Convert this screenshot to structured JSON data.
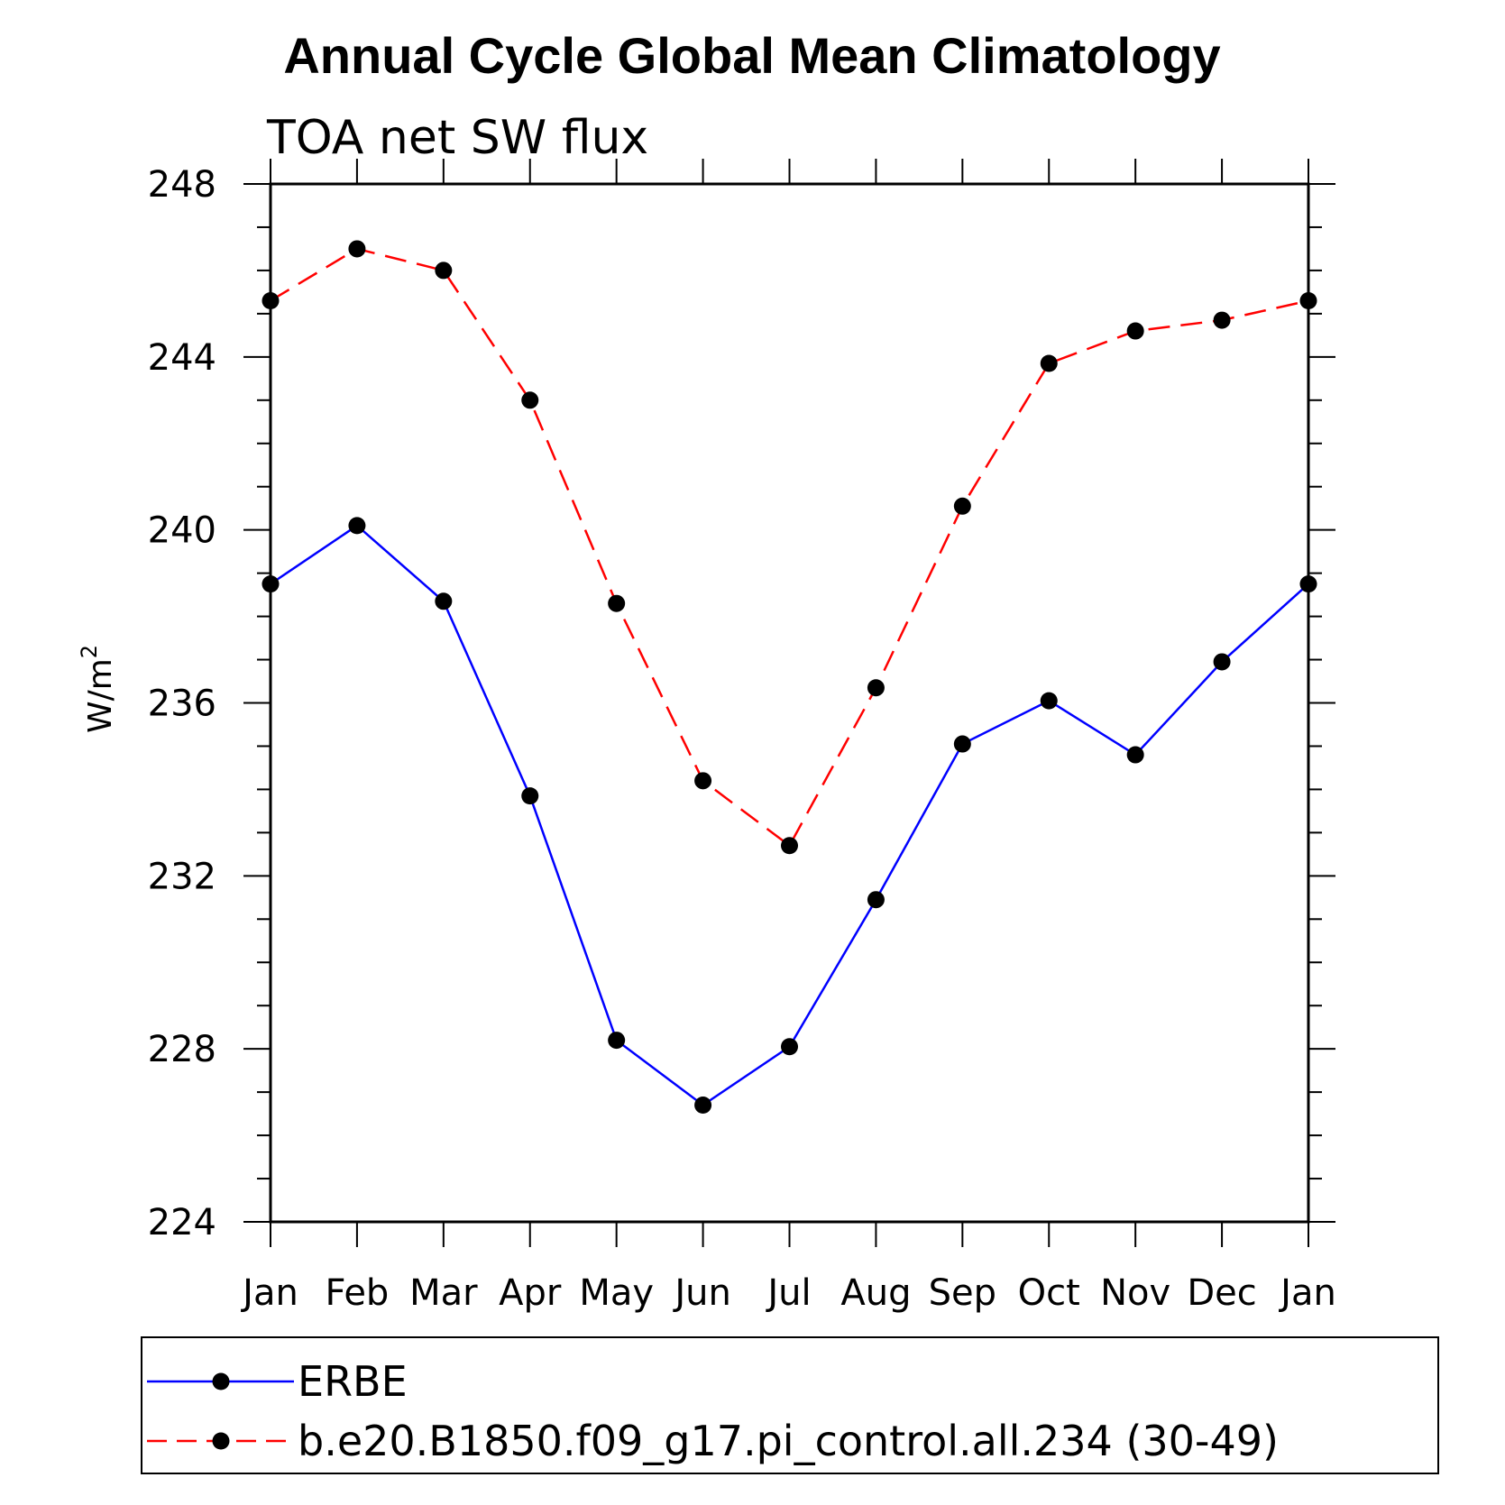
{
  "chart_data": {
    "type": "line",
    "title": "Annual Cycle Global Mean Climatology",
    "subtitle": "TOA net SW flux",
    "xlabel": "",
    "ylabel": "W/m",
    "ylabel_superscript": "2",
    "categories": [
      "Jan",
      "Feb",
      "Mar",
      "Apr",
      "May",
      "Jun",
      "Jul",
      "Aug",
      "Sep",
      "Oct",
      "Nov",
      "Dec",
      "Jan"
    ],
    "ylim": [
      224,
      248
    ],
    "yticks": [
      224,
      228,
      232,
      236,
      240,
      244,
      248
    ],
    "yminor_step": 1,
    "series": [
      {
        "name": "ERBE",
        "color": "#0000ff",
        "dash": "solid",
        "values": [
          238.75,
          240.1,
          238.35,
          233.85,
          228.2,
          226.7,
          228.05,
          231.45,
          235.05,
          236.05,
          234.8,
          236.95,
          238.75
        ]
      },
      {
        "name": "b.e20.B1850.f09_g17.pi_control.all.234 (30-49)",
        "color": "#ff0000",
        "dash": "dashed",
        "values": [
          245.3,
          246.5,
          246.0,
          243.0,
          238.3,
          234.2,
          232.7,
          236.35,
          240.55,
          243.85,
          244.6,
          244.85,
          245.3
        ]
      }
    ],
    "legend_position": "bottom",
    "marker_color": "#000000"
  }
}
